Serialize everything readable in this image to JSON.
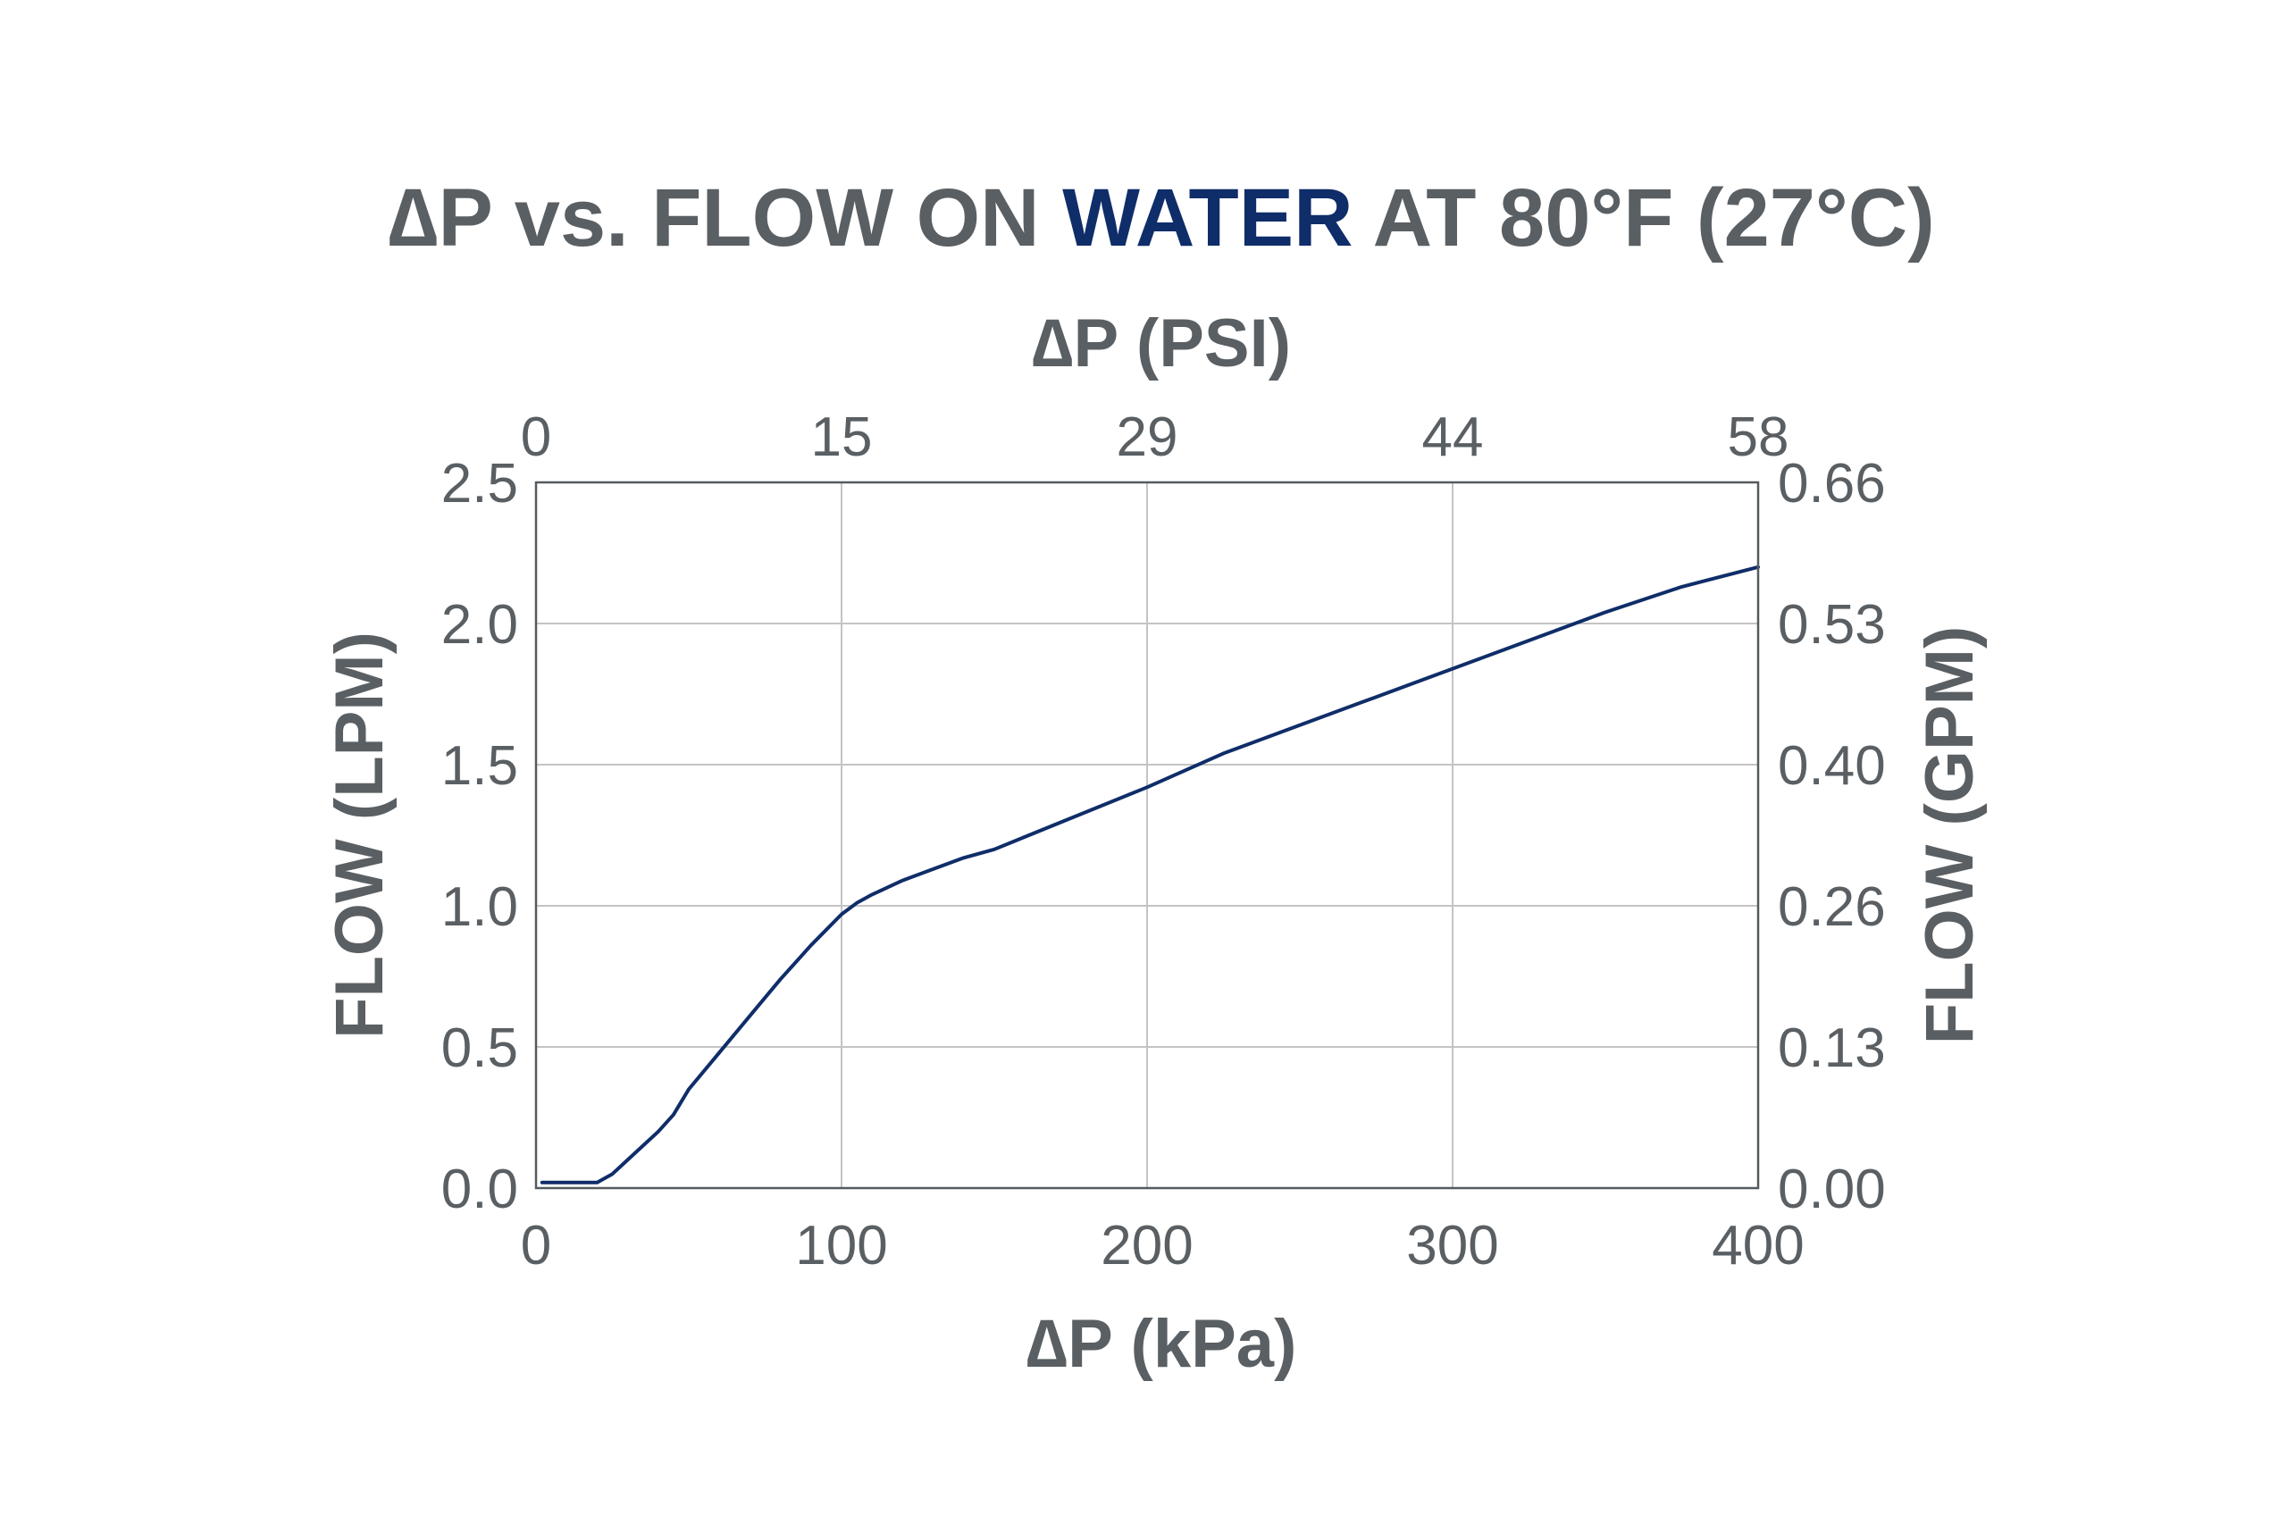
{
  "colors": {
    "text": "#5a5f63",
    "accent": "#0f2d69",
    "grid": "#c4c4c4",
    "frame": "#555a5e",
    "line": "#0f2d69"
  },
  "chart_data": {
    "type": "line",
    "title_parts": [
      {
        "text": "∆P vs. FLOW ON ",
        "accent": false
      },
      {
        "text": "WATER",
        "accent": true
      },
      {
        "text": " AT 80°F (27°C)",
        "accent": false
      }
    ],
    "xlabel": "∆P (kPa)",
    "x2label": "∆P (PSI)",
    "ylabel": "FLOW (LPM)",
    "y2label": "FLOW (GPM)",
    "xlim": [
      0,
      400
    ],
    "ylim": [
      0,
      2.5
    ],
    "x_ticks": [
      {
        "value": 0,
        "label": "0"
      },
      {
        "value": 100,
        "label": "100"
      },
      {
        "value": 200,
        "label": "200"
      },
      {
        "value": 300,
        "label": "300"
      },
      {
        "value": 400,
        "label": "400"
      }
    ],
    "x2_ticks": [
      {
        "value": 0,
        "label": "0"
      },
      {
        "value": 100,
        "label": "15"
      },
      {
        "value": 200,
        "label": "29"
      },
      {
        "value": 300,
        "label": "44"
      },
      {
        "value": 400,
        "label": "58"
      }
    ],
    "y_ticks": [
      {
        "value": 0,
        "label": "0.0"
      },
      {
        "value": 0.5,
        "label": "0.5"
      },
      {
        "value": 1.0,
        "label": "1.0"
      },
      {
        "value": 1.5,
        "label": "1.5"
      },
      {
        "value": 2.0,
        "label": "2.0"
      },
      {
        "value": 2.5,
        "label": "2.5"
      }
    ],
    "y2_ticks": [
      {
        "value": 0,
        "label": "0.00"
      },
      {
        "value": 0.5,
        "label": "0.13"
      },
      {
        "value": 1.0,
        "label": "0.26"
      },
      {
        "value": 1.5,
        "label": "0.40"
      },
      {
        "value": 2.0,
        "label": "0.53"
      },
      {
        "value": 2.5,
        "label": "0.66"
      }
    ],
    "grid": true,
    "series": [
      {
        "x": [
          2,
          10,
          20,
          25,
          30,
          40,
          45,
          50,
          60,
          70,
          80,
          90,
          100,
          105,
          110,
          120,
          130,
          140,
          150,
          175,
          200,
          225,
          250,
          275,
          300,
          325,
          350,
          375,
          400
        ],
        "y": [
          0.02,
          0.02,
          0.02,
          0.05,
          0.1,
          0.2,
          0.26,
          0.35,
          0.48,
          0.61,
          0.74,
          0.86,
          0.97,
          1.01,
          1.04,
          1.09,
          1.13,
          1.17,
          1.2,
          1.31,
          1.42,
          1.54,
          1.64,
          1.74,
          1.84,
          1.94,
          2.04,
          2.13,
          2.2
        ]
      }
    ]
  }
}
